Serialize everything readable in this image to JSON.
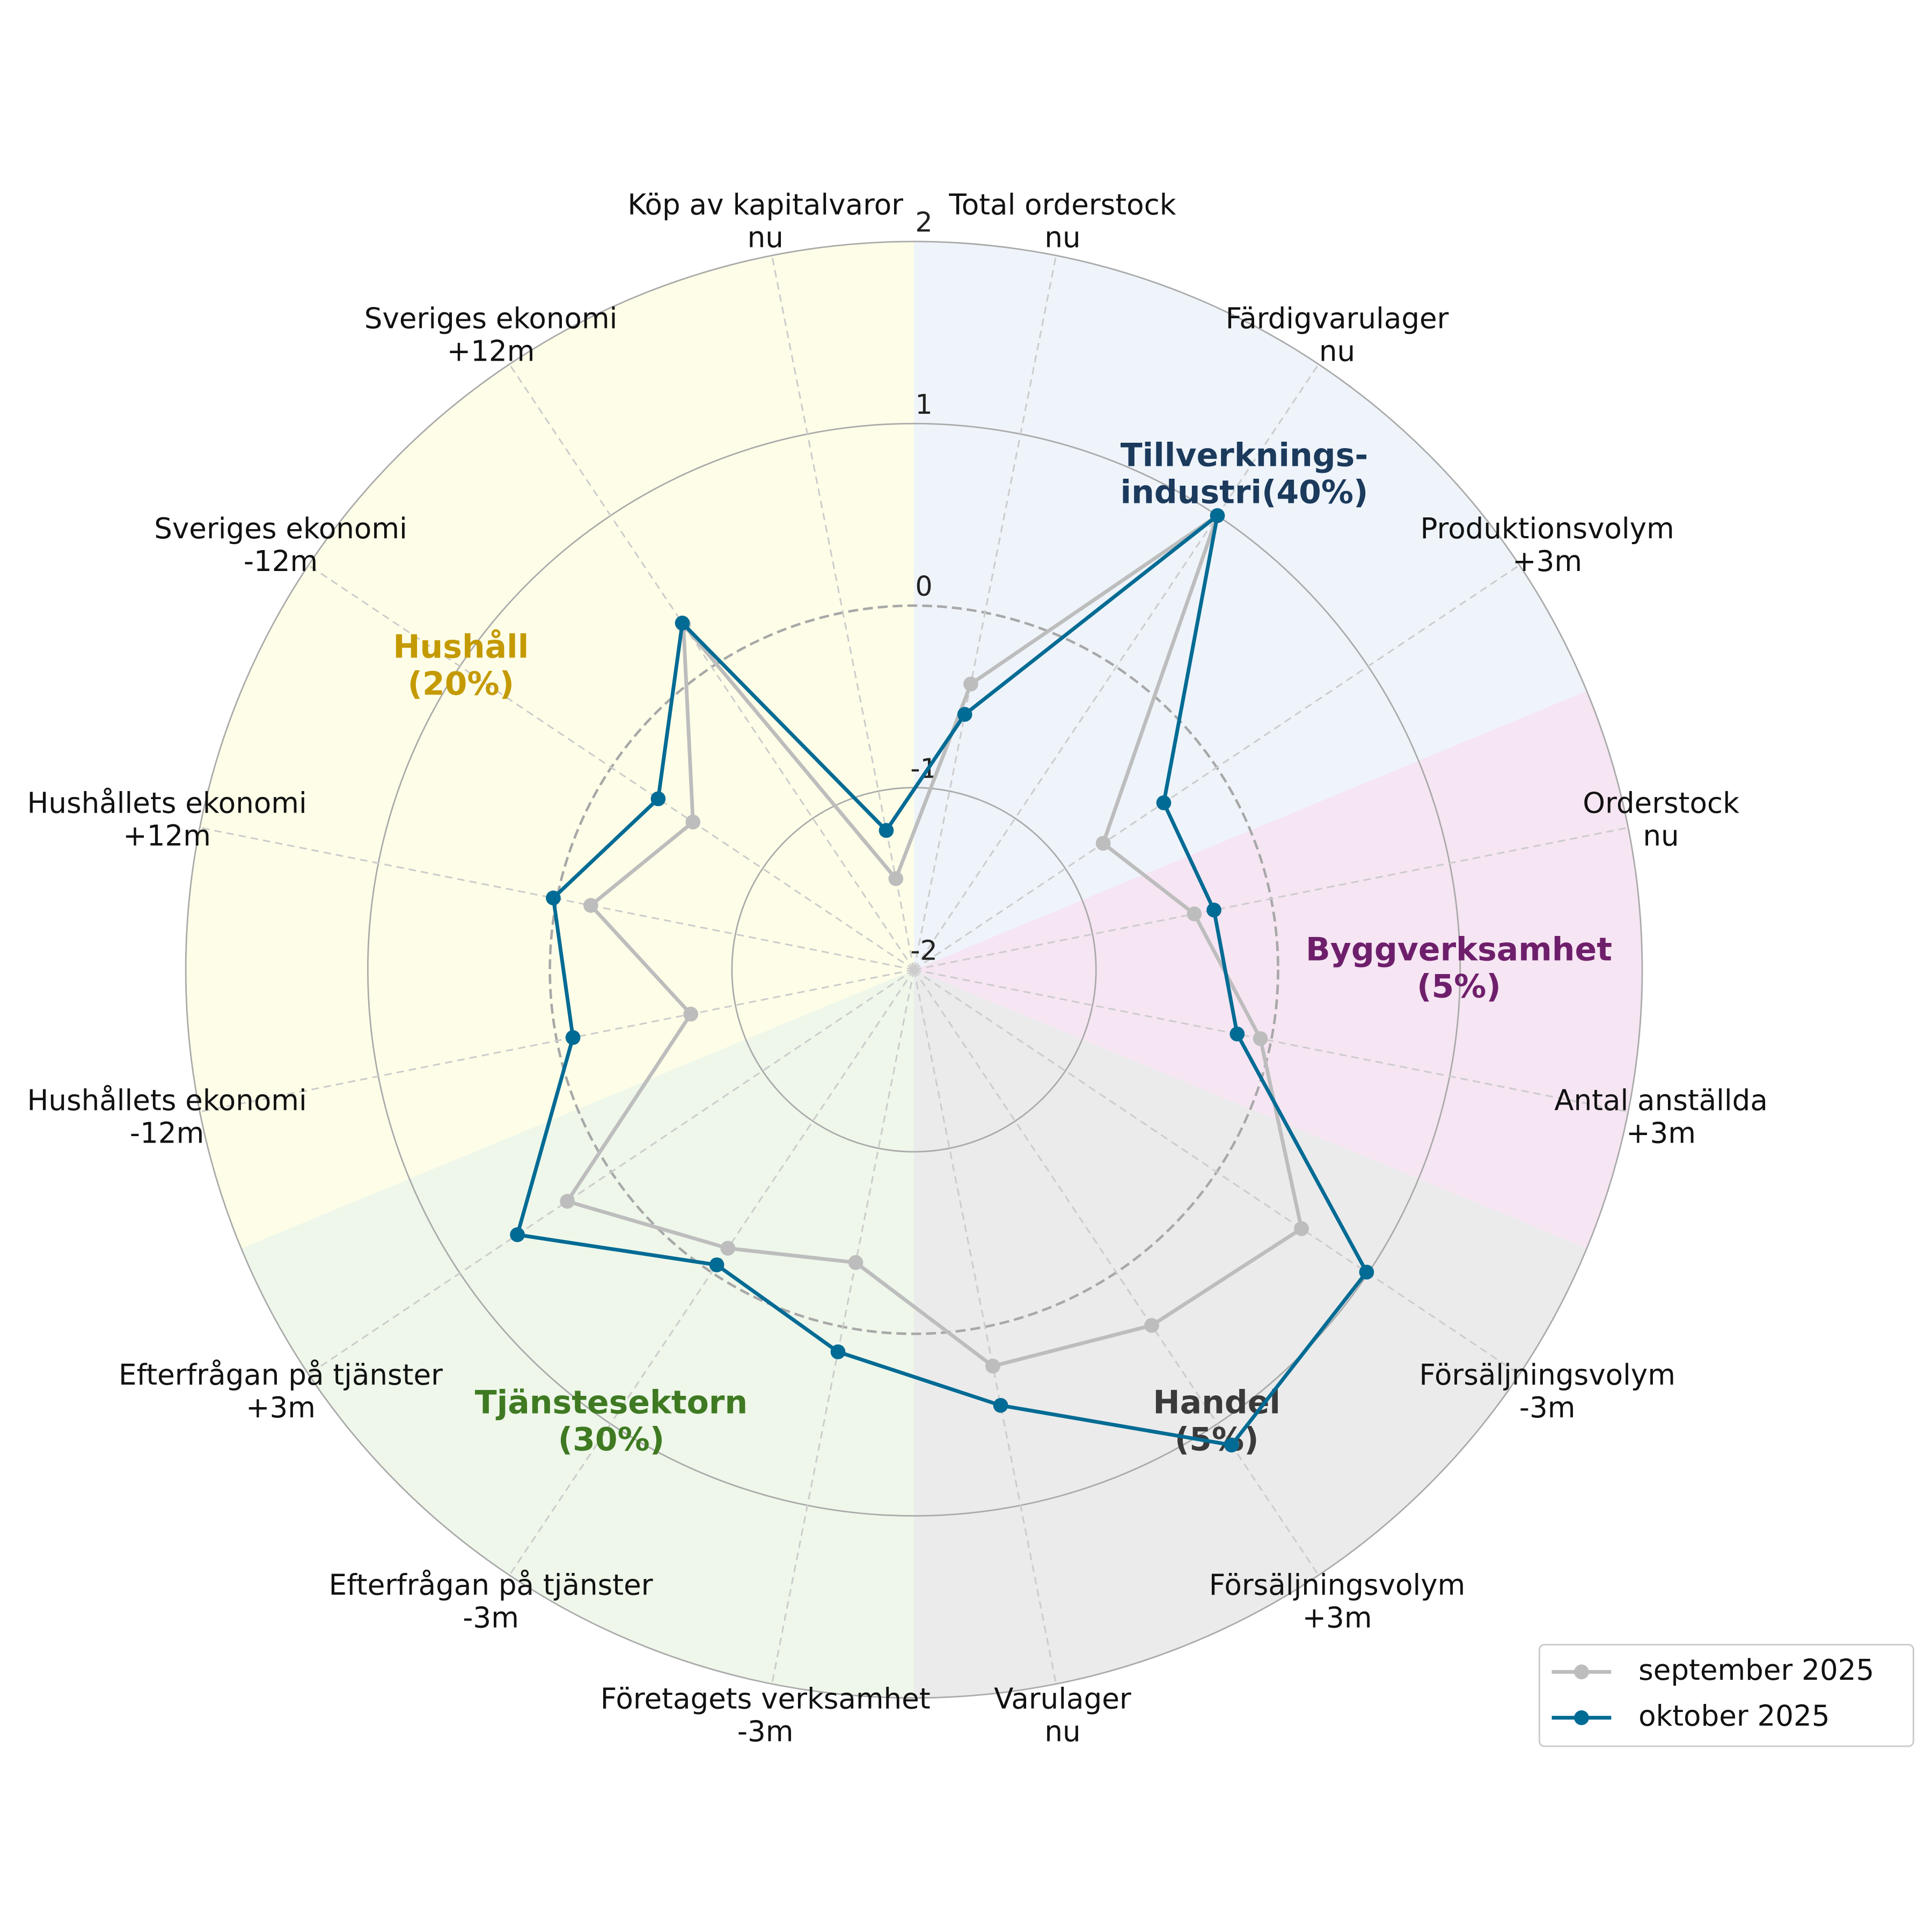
{
  "chart_data": {
    "type": "radar",
    "categories": [
      "Total orderstock\nnu",
      "Färdigvarulager\nnu",
      "Produktionsvolym\n+3m",
      "Orderstock\nnu",
      "Antal anställda\n+3m",
      "Försäljningsvolym\n-3m",
      "Försäljningsvolym\n+3m",
      "Varulager\nnu",
      "Företagets verksamhet\n-3m",
      "Efterfrågan på tjänster\n-3m",
      "Efterfrågan på tjänster\n+3m",
      "Hushållets ekonomi\n-12m",
      "Hushållets ekonomi\n+12m",
      "Sveriges ekonomi\n-12m",
      "Sveriges ekonomi\n+12m",
      "Köp av kapitalvaror\nnu"
    ],
    "series": [
      {
        "name": "september 2025",
        "color": "#bdbdbd",
        "values": [
          -0.4,
          1.0,
          -0.75,
          -0.43,
          -0.06,
          0.56,
          0.35,
          0.22,
          -0.36,
          -0.16,
          0.29,
          -0.75,
          -0.19,
          -0.54,
          0.28,
          -1.49
        ]
      },
      {
        "name": "oktober 2025",
        "color": "#006b94",
        "values": [
          -0.57,
          1.0,
          -0.35,
          -0.32,
          -0.19,
          0.99,
          1.14,
          0.44,
          0.14,
          -0.05,
          0.62,
          -0.09,
          0.02,
          -0.31,
          0.29,
          -1.22
        ]
      }
    ],
    "groups": [
      {
        "name": "Tillverknings-\nindustri(40%)",
        "color": "#1b3a5c",
        "background": "#eef4fa"
      },
      {
        "name": "Byggverksamhet\n(5%)",
        "color": "#6e1f6b",
        "background": "#f6e5f3"
      },
      {
        "name": "Handel\n(5%)",
        "color": "#3a3a3a",
        "background": "#ebebeb"
      },
      {
        "name": "Tjänstesektorn\n(30%)",
        "color": "#3f7a22",
        "background": "#eef7ea"
      },
      {
        "name": "Hushåll\n(20%)",
        "color": "#c49a00",
        "background": "#fefee8"
      }
    ],
    "ylim": [
      -2,
      2
    ],
    "yticks": [
      -2,
      -1,
      0,
      1,
      2
    ],
    "grid": true,
    "legend": "lower right"
  }
}
